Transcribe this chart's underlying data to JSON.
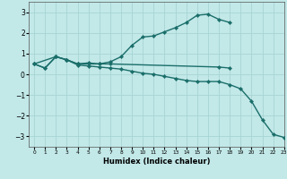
{
  "title": "",
  "xlabel": "Humidex (Indice chaleur)",
  "xlim": [
    -0.5,
    23
  ],
  "ylim": [
    -3.5,
    3.5
  ],
  "yticks": [
    -3,
    -2,
    -1,
    0,
    1,
    2,
    3
  ],
  "xticks": [
    0,
    1,
    2,
    3,
    4,
    5,
    6,
    7,
    8,
    9,
    10,
    11,
    12,
    13,
    14,
    15,
    16,
    17,
    18,
    19,
    20,
    21,
    22,
    23
  ],
  "bg_color": "#c2e8e8",
  "grid_color": "#a8d4d4",
  "line_color": "#1a6e6a",
  "lines": [
    {
      "x": [
        0,
        1,
        2,
        3,
        4,
        5,
        6,
        7,
        17,
        18
      ],
      "y": [
        0.5,
        0.3,
        0.85,
        0.7,
        0.5,
        0.55,
        0.5,
        0.5,
        0.35,
        0.3
      ]
    },
    {
      "x": [
        0,
        1,
        2,
        3,
        4,
        5,
        6,
        7,
        8,
        9,
        10,
        11,
        12,
        13,
        14,
        15,
        16,
        17,
        18
      ],
      "y": [
        0.5,
        0.3,
        0.85,
        0.7,
        0.5,
        0.5,
        0.5,
        0.6,
        0.85,
        1.4,
        1.8,
        1.85,
        2.05,
        2.25,
        2.5,
        2.85,
        2.9,
        2.65,
        2.5
      ]
    },
    {
      "x": [
        0,
        2,
        3,
        4,
        5,
        6,
        7,
        8,
        9,
        10,
        11,
        12,
        13,
        14,
        15,
        16,
        17,
        18,
        19,
        20,
        21,
        22,
        23
      ],
      "y": [
        0.5,
        0.85,
        0.7,
        0.45,
        0.4,
        0.35,
        0.3,
        0.25,
        0.15,
        0.05,
        0.0,
        -0.1,
        -0.2,
        -0.3,
        -0.35,
        -0.35,
        -0.35,
        -0.5,
        -0.7,
        -1.3,
        -2.2,
        -2.9,
        -3.05
      ]
    }
  ]
}
